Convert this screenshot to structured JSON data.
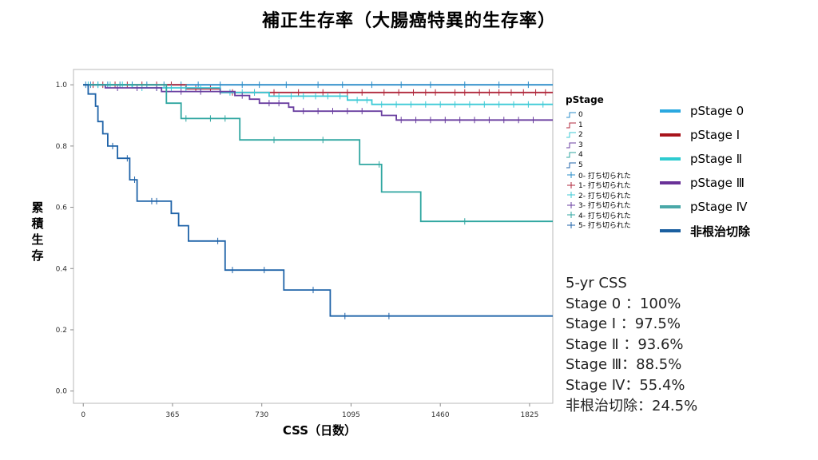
{
  "title": "補正生存率（大腸癌特異的生存率）",
  "chart_data": {
    "type": "line",
    "step": true,
    "title": "補正生存率（大腸癌特異的生存率）",
    "xlabel": "CSS（日数）",
    "ylabel": "累積生存",
    "xlim": [
      -40,
      1920
    ],
    "ylim": [
      -0.04,
      1.05
    ],
    "xticks": [
      0,
      365,
      730,
      1095,
      1460,
      1825
    ],
    "yticks": [
      0.0,
      0.2,
      0.4,
      0.6,
      0.8,
      1.0
    ],
    "ytick_labels": [
      "0.0",
      "0.2",
      "0.4",
      "0.6",
      "0.8",
      "1.0"
    ],
    "legend_title": "pStage",
    "series": [
      {
        "name": "0",
        "color": "#2a8cc8",
        "points": [
          [
            0,
            1.0
          ],
          [
            1920,
            1.0
          ]
        ],
        "censored": [
          [
            10,
            1.0
          ],
          [
            30,
            1.0
          ],
          [
            60,
            1.0
          ],
          [
            100,
            1.0
          ],
          [
            150,
            1.0
          ],
          [
            200,
            1.0
          ],
          [
            260,
            1.0
          ],
          [
            330,
            1.0
          ],
          [
            400,
            1.0
          ],
          [
            470,
            1.0
          ],
          [
            560,
            1.0
          ],
          [
            650,
            1.0
          ],
          [
            720,
            1.0
          ],
          [
            830,
            1.0
          ],
          [
            960,
            1.0
          ],
          [
            1060,
            1.0
          ],
          [
            1180,
            1.0
          ],
          [
            1300,
            1.0
          ],
          [
            1420,
            1.0
          ],
          [
            1560,
            1.0
          ],
          [
            1700,
            1.0
          ],
          [
            1820,
            1.0
          ]
        ]
      },
      {
        "name": "1",
        "color": "#b0283c",
        "points": [
          [
            0,
            1.0
          ],
          [
            420,
            1.0
          ],
          [
            420,
            0.987
          ],
          [
            560,
            0.987
          ],
          [
            560,
            0.975
          ],
          [
            1920,
            0.975
          ]
        ],
        "censored": [
          [
            40,
            1.0
          ],
          [
            80,
            1.0
          ],
          [
            130,
            1.0
          ],
          [
            180,
            1.0
          ],
          [
            240,
            1.0
          ],
          [
            300,
            1.0
          ],
          [
            360,
            1.0
          ],
          [
            460,
            0.987
          ],
          [
            520,
            0.987
          ],
          [
            610,
            0.975
          ],
          [
            700,
            0.975
          ],
          [
            780,
            0.975
          ],
          [
            880,
            0.975
          ],
          [
            980,
            0.975
          ],
          [
            1080,
            0.975
          ],
          [
            1140,
            0.975
          ],
          [
            1230,
            0.975
          ],
          [
            1290,
            0.975
          ],
          [
            1350,
            0.975
          ],
          [
            1400,
            0.975
          ],
          [
            1440,
            0.975
          ],
          [
            1520,
            0.975
          ],
          [
            1560,
            0.975
          ],
          [
            1620,
            0.975
          ],
          [
            1660,
            0.975
          ],
          [
            1700,
            0.975
          ],
          [
            1750,
            0.975
          ],
          [
            1800,
            0.975
          ],
          [
            1850,
            0.975
          ],
          [
            1890,
            0.975
          ]
        ]
      },
      {
        "name": "2",
        "color": "#3ccad6",
        "points": [
          [
            0,
            1.0
          ],
          [
            200,
            1.0
          ],
          [
            200,
            0.99
          ],
          [
            560,
            0.99
          ],
          [
            560,
            0.975
          ],
          [
            760,
            0.975
          ],
          [
            760,
            0.963
          ],
          [
            1080,
            0.963
          ],
          [
            1080,
            0.95
          ],
          [
            1180,
            0.95
          ],
          [
            1180,
            0.936
          ],
          [
            1920,
            0.936
          ]
        ],
        "censored": [
          [
            20,
            1.0
          ],
          [
            60,
            1.0
          ],
          [
            110,
            1.0
          ],
          [
            160,
            1.0
          ],
          [
            240,
            0.99
          ],
          [
            300,
            0.99
          ],
          [
            360,
            0.99
          ],
          [
            420,
            0.99
          ],
          [
            480,
            0.99
          ],
          [
            600,
            0.975
          ],
          [
            650,
            0.975
          ],
          [
            700,
            0.975
          ],
          [
            800,
            0.963
          ],
          [
            850,
            0.963
          ],
          [
            900,
            0.963
          ],
          [
            950,
            0.963
          ],
          [
            1000,
            0.963
          ],
          [
            1050,
            0.963
          ],
          [
            1120,
            0.95
          ],
          [
            1160,
            0.95
          ],
          [
            1220,
            0.936
          ],
          [
            1280,
            0.936
          ],
          [
            1340,
            0.936
          ],
          [
            1400,
            0.936
          ],
          [
            1460,
            0.936
          ],
          [
            1520,
            0.936
          ],
          [
            1580,
            0.936
          ],
          [
            1640,
            0.936
          ],
          [
            1700,
            0.936
          ],
          [
            1760,
            0.936
          ],
          [
            1820,
            0.936
          ],
          [
            1880,
            0.936
          ]
        ]
      },
      {
        "name": "3",
        "color": "#6a3fa0",
        "points": [
          [
            0,
            1.0
          ],
          [
            90,
            1.0
          ],
          [
            90,
            0.99
          ],
          [
            320,
            0.99
          ],
          [
            320,
            0.978
          ],
          [
            620,
            0.978
          ],
          [
            620,
            0.965
          ],
          [
            680,
            0.965
          ],
          [
            680,
            0.953
          ],
          [
            720,
            0.953
          ],
          [
            720,
            0.94
          ],
          [
            840,
            0.94
          ],
          [
            840,
            0.927
          ],
          [
            860,
            0.927
          ],
          [
            860,
            0.914
          ],
          [
            1220,
            0.914
          ],
          [
            1220,
            0.9
          ],
          [
            1280,
            0.9
          ],
          [
            1280,
            0.885
          ],
          [
            1920,
            0.885
          ]
        ],
        "censored": [
          [
            140,
            0.99
          ],
          [
            220,
            0.99
          ],
          [
            300,
            0.99
          ],
          [
            400,
            0.978
          ],
          [
            480,
            0.978
          ],
          [
            560,
            0.978
          ],
          [
            650,
            0.965
          ],
          [
            760,
            0.94
          ],
          [
            800,
            0.94
          ],
          [
            900,
            0.914
          ],
          [
            960,
            0.914
          ],
          [
            1020,
            0.914
          ],
          [
            1080,
            0.914
          ],
          [
            1140,
            0.914
          ],
          [
            1300,
            0.885
          ],
          [
            1360,
            0.885
          ],
          [
            1420,
            0.885
          ],
          [
            1480,
            0.885
          ],
          [
            1540,
            0.885
          ],
          [
            1600,
            0.885
          ],
          [
            1660,
            0.885
          ],
          [
            1720,
            0.885
          ],
          [
            1780,
            0.885
          ],
          [
            1840,
            0.885
          ]
        ]
      },
      {
        "name": "4",
        "color": "#2fa6a0",
        "points": [
          [
            0,
            1.0
          ],
          [
            340,
            1.0
          ],
          [
            340,
            0.94
          ],
          [
            400,
            0.94
          ],
          [
            400,
            0.89
          ],
          [
            640,
            0.89
          ],
          [
            640,
            0.82
          ],
          [
            1130,
            0.82
          ],
          [
            1130,
            0.74
          ],
          [
            1220,
            0.74
          ],
          [
            1220,
            0.65
          ],
          [
            1380,
            0.65
          ],
          [
            1380,
            0.554
          ],
          [
            1920,
            0.554
          ]
        ],
        "censored": [
          [
            420,
            0.89
          ],
          [
            520,
            0.89
          ],
          [
            580,
            0.89
          ],
          [
            780,
            0.82
          ],
          [
            980,
            0.82
          ],
          [
            1210,
            0.74
          ],
          [
            1560,
            0.554
          ]
        ]
      },
      {
        "name": "5",
        "color": "#1f63a8",
        "points": [
          [
            0,
            1.0
          ],
          [
            20,
            1.0
          ],
          [
            20,
            0.97
          ],
          [
            50,
            0.97
          ],
          [
            50,
            0.93
          ],
          [
            60,
            0.93
          ],
          [
            60,
            0.88
          ],
          [
            80,
            0.88
          ],
          [
            80,
            0.84
          ],
          [
            100,
            0.84
          ],
          [
            100,
            0.8
          ],
          [
            140,
            0.8
          ],
          [
            140,
            0.76
          ],
          [
            190,
            0.76
          ],
          [
            190,
            0.69
          ],
          [
            220,
            0.69
          ],
          [
            220,
            0.62
          ],
          [
            360,
            0.62
          ],
          [
            360,
            0.58
          ],
          [
            390,
            0.58
          ],
          [
            390,
            0.54
          ],
          [
            430,
            0.54
          ],
          [
            430,
            0.49
          ],
          [
            580,
            0.49
          ],
          [
            580,
            0.395
          ],
          [
            820,
            0.395
          ],
          [
            820,
            0.33
          ],
          [
            1010,
            0.33
          ],
          [
            1010,
            0.245
          ],
          [
            1920,
            0.245
          ]
        ],
        "censored": [
          [
            120,
            0.8
          ],
          [
            180,
            0.76
          ],
          [
            210,
            0.69
          ],
          [
            280,
            0.62
          ],
          [
            300,
            0.62
          ],
          [
            550,
            0.49
          ],
          [
            610,
            0.395
          ],
          [
            740,
            0.395
          ],
          [
            940,
            0.33
          ],
          [
            1070,
            0.245
          ],
          [
            1250,
            0.245
          ]
        ]
      }
    ],
    "legend_lines": [
      "0",
      "1",
      "2",
      "3",
      "4",
      "5"
    ],
    "legend_censored": [
      "0- 打ち切られた",
      "1- 打ち切られた",
      "2- 打ち切られた",
      "3- 打ち切られた",
      "4- 打ち切られた",
      "5- 打ち切られた"
    ]
  },
  "right_legend": [
    {
      "label": "pStage 0",
      "color": "#2aa8e0",
      "bold": false
    },
    {
      "label": "pStage Ⅰ",
      "color": "#a8141c",
      "bold": false
    },
    {
      "label": "pStage Ⅱ",
      "color": "#2ecbd0",
      "bold": false
    },
    {
      "label": "pStage Ⅲ",
      "color": "#6a3298",
      "bold": false
    },
    {
      "label": "pStage Ⅳ",
      "color": "#4aa8a8",
      "bold": false
    },
    {
      "label": "非根治切除",
      "color": "#1a5fa0",
      "bold": true
    }
  ],
  "summary": {
    "heading": "5-yr CSS",
    "rows": [
      "Stage 0 ：100%",
      "Stage Ⅰ ：97.5%",
      "Stage Ⅱ ：93.6%",
      "Stage Ⅲ：88.5%",
      "Stage Ⅳ：55.4%",
      "非根治切除：24.5%"
    ]
  }
}
